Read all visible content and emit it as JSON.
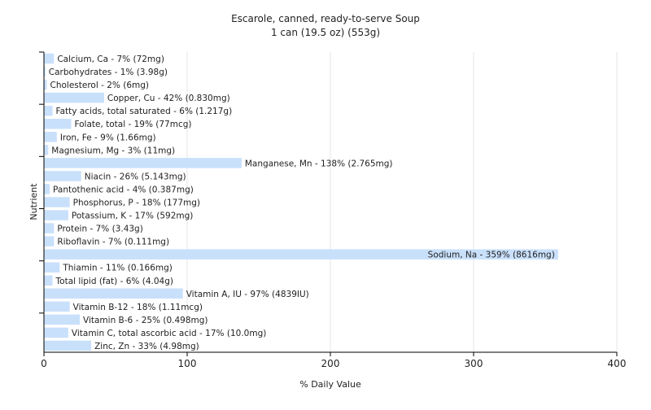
{
  "chart_data": {
    "type": "bar",
    "orientation": "horizontal",
    "title": "Escarole, canned, ready-to-serve Soup",
    "subtitle": "1 can (19.5 oz) (553g)",
    "xlabel": "% Daily Value",
    "ylabel": "Nutrient",
    "xlim": [
      0,
      400
    ],
    "xticks": [
      0,
      100,
      200,
      300,
      400
    ],
    "grid": true,
    "bar_color": "#c9e0fb",
    "categories": [
      "Calcium, Ca",
      "Carbohydrates",
      "Cholesterol",
      "Copper, Cu",
      "Fatty acids, total saturated",
      "Folate, total",
      "Iron, Fe",
      "Magnesium, Mg",
      "Manganese, Mn",
      "Niacin",
      "Pantothenic acid",
      "Phosphorus, P",
      "Potassium, K",
      "Protein",
      "Riboflavin",
      "Sodium, Na",
      "Thiamin",
      "Total lipid (fat)",
      "Vitamin A, IU",
      "Vitamin B-12",
      "Vitamin B-6",
      "Vitamin C, total ascorbic acid",
      "Zinc, Zn"
    ],
    "values": [
      7,
      1,
      2,
      42,
      6,
      19,
      9,
      3,
      138,
      26,
      4,
      18,
      17,
      7,
      7,
      359,
      11,
      6,
      97,
      18,
      25,
      17,
      33
    ],
    "labels": [
      "Calcium, Ca - 7% (72mg)",
      "Carbohydrates - 1% (3.98g)",
      "Cholesterol - 2% (6mg)",
      "Copper, Cu - 42% (0.830mg)",
      "Fatty acids, total saturated - 6% (1.217g)",
      "Folate, total - 19% (77mcg)",
      "Iron, Fe - 9% (1.66mg)",
      "Magnesium, Mg - 3% (11mg)",
      "Manganese, Mn - 138% (2.765mg)",
      "Niacin - 26% (5.143mg)",
      "Pantothenic acid - 4% (0.387mg)",
      "Phosphorus, P - 18% (177mg)",
      "Potassium, K - 17% (592mg)",
      "Protein - 7% (3.43g)",
      "Riboflavin - 7% (0.111mg)",
      "Sodium, Na - 359% (8616mg)",
      "Thiamin - 11% (0.166mg)",
      "Total lipid (fat) - 6% (4.04g)",
      "Vitamin A, IU - 97% (4839IU)",
      "Vitamin B-12 - 18% (1.11mcg)",
      "Vitamin B-6 - 25% (0.498mg)",
      "Vitamin C, total ascorbic acid - 17% (10.0mg)",
      "Zinc, Zn - 33% (4.98mg)"
    ]
  }
}
